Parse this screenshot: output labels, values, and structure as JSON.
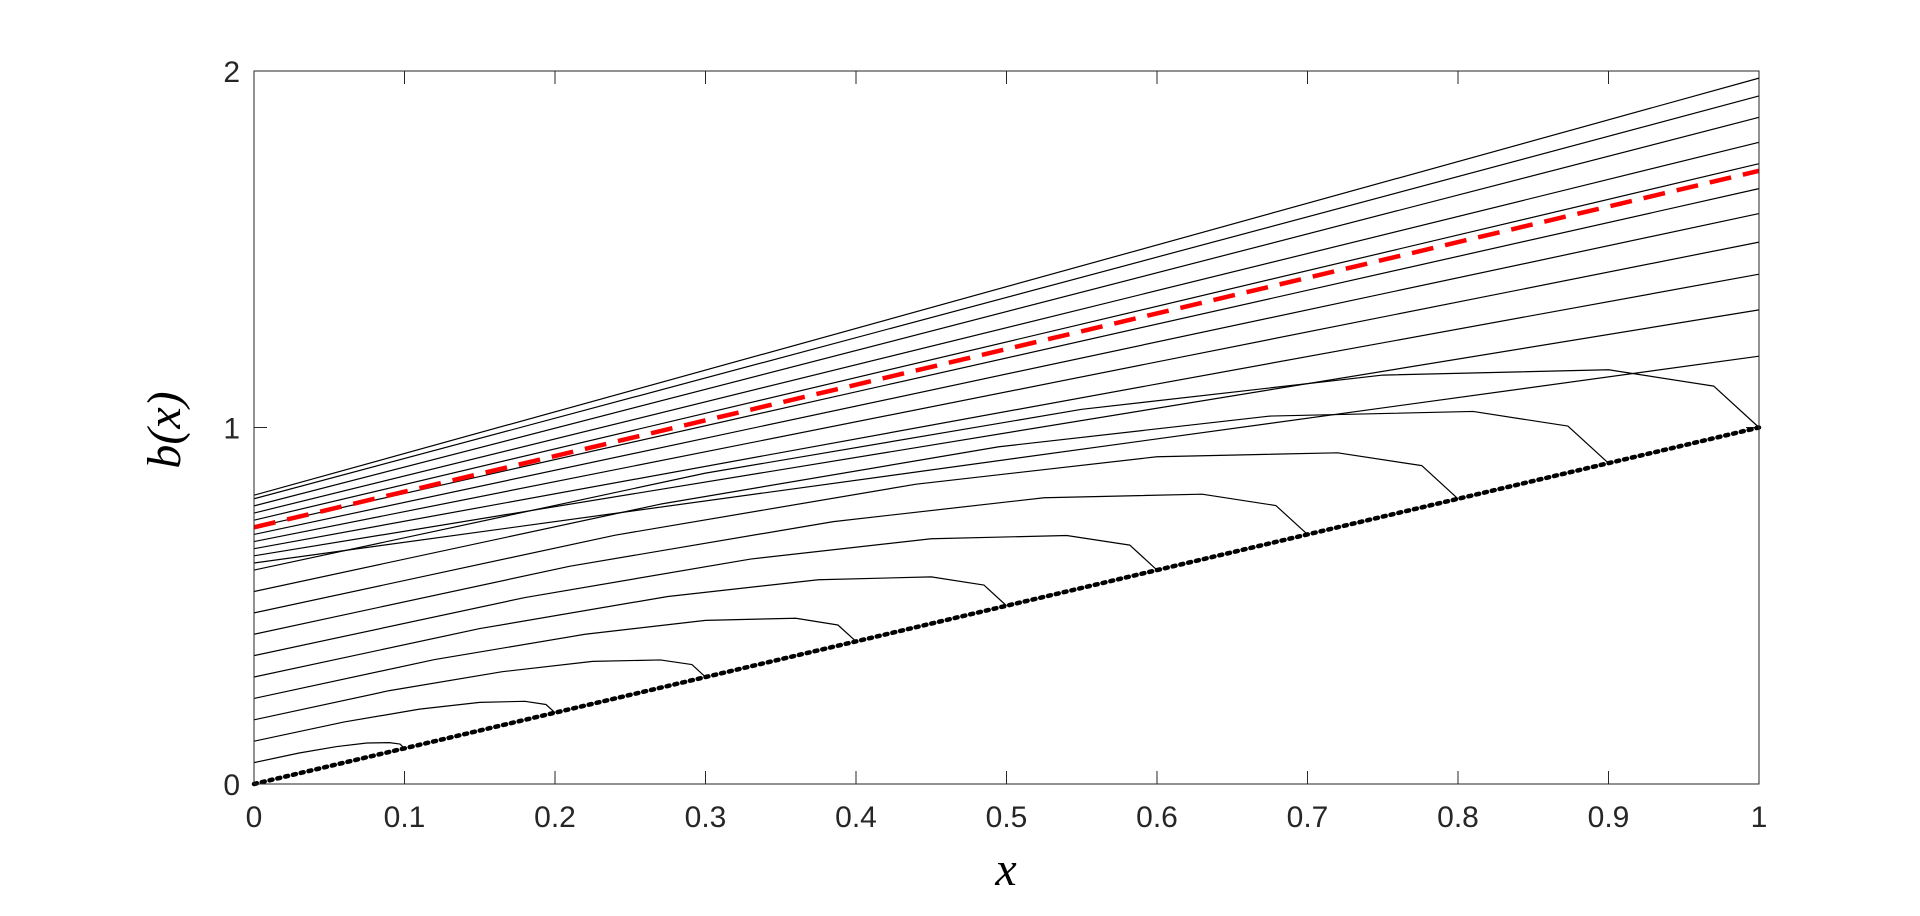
{
  "chart_data": {
    "type": "line",
    "xlabel": "x",
    "ylabel": "b(x)",
    "xlim": [
      0,
      1
    ],
    "ylim": [
      0,
      2
    ],
    "xticks": [
      0,
      0.1,
      0.2,
      0.3,
      0.4,
      0.5,
      0.6,
      0.7,
      0.8,
      0.9,
      1
    ],
    "yticks": [
      0,
      1,
      2
    ],
    "grid": false,
    "series": [
      {
        "color": "#000000",
        "style": "solid",
        "x": [
          0,
          0.03,
          0.055,
          0.075,
          0.09,
          0.097,
          0.1
        ],
        "values": [
          0.06,
          0.087,
          0.105,
          0.115,
          0.116,
          0.112,
          0.1
        ]
      },
      {
        "color": "#000000",
        "style": "solid",
        "x": [
          0,
          0.06,
          0.11,
          0.15,
          0.18,
          0.194,
          0.2
        ],
        "values": [
          0.12,
          0.174,
          0.21,
          0.229,
          0.232,
          0.223,
          0.2
        ]
      },
      {
        "color": "#000000",
        "style": "solid",
        "x": [
          0,
          0.09,
          0.165,
          0.225,
          0.27,
          0.291,
          0.3
        ],
        "values": [
          0.18,
          0.262,
          0.315,
          0.344,
          0.348,
          0.335,
          0.3
        ]
      },
      {
        "color": "#000000",
        "style": "solid",
        "x": [
          0,
          0.12,
          0.22,
          0.3,
          0.36,
          0.388,
          0.4
        ],
        "values": [
          0.24,
          0.349,
          0.42,
          0.459,
          0.465,
          0.446,
          0.4
        ]
      },
      {
        "color": "#000000",
        "style": "solid",
        "x": [
          0,
          0.15,
          0.275,
          0.375,
          0.45,
          0.485,
          0.5
        ],
        "values": [
          0.3,
          0.436,
          0.526,
          0.573,
          0.581,
          0.558,
          0.5
        ]
      },
      {
        "color": "#000000",
        "style": "solid",
        "x": [
          0,
          0.18,
          0.33,
          0.45,
          0.54,
          0.582,
          0.6
        ],
        "values": [
          0.36,
          0.523,
          0.631,
          0.688,
          0.697,
          0.67,
          0.6
        ]
      },
      {
        "color": "#000000",
        "style": "solid",
        "x": [
          0,
          0.21,
          0.385,
          0.525,
          0.63,
          0.679,
          0.7
        ],
        "values": [
          0.42,
          0.611,
          0.736,
          0.803,
          0.813,
          0.781,
          0.7
        ]
      },
      {
        "color": "#000000",
        "style": "solid",
        "x": [
          0,
          0.24,
          0.44,
          0.6,
          0.72,
          0.776,
          0.8
        ],
        "values": [
          0.48,
          0.698,
          0.841,
          0.918,
          0.929,
          0.893,
          0.8
        ]
      },
      {
        "color": "#000000",
        "style": "solid",
        "x": [
          0,
          0.27,
          0.495,
          0.675,
          0.81,
          0.873,
          0.9
        ],
        "values": [
          0.54,
          0.785,
          0.946,
          1.032,
          1.045,
          1.004,
          0.9
        ]
      },
      {
        "color": "#000000",
        "style": "solid",
        "x": [
          0,
          0.3,
          0.55,
          0.75,
          0.9,
          0.97,
          1
        ],
        "values": [
          0.6,
          0.872,
          1.051,
          1.147,
          1.162,
          1.116,
          1
        ]
      },
      {
        "color": "#000000",
        "style": "solid",
        "x": [
          0,
          1
        ],
        "values": [
          0.62,
          1.2
        ]
      },
      {
        "color": "#000000",
        "style": "solid",
        "x": [
          0,
          1
        ],
        "values": [
          0.64,
          1.33
        ]
      },
      {
        "color": "#000000",
        "style": "solid",
        "x": [
          0,
          1
        ],
        "values": [
          0.66,
          1.43
        ]
      },
      {
        "color": "#000000",
        "style": "solid",
        "x": [
          0,
          1
        ],
        "values": [
          0.68,
          1.52
        ]
      },
      {
        "color": "#000000",
        "style": "solid",
        "x": [
          0,
          1
        ],
        "values": [
          0.7,
          1.6
        ]
      },
      {
        "color": "#000000",
        "style": "solid",
        "x": [
          0,
          1
        ],
        "values": [
          0.72,
          1.67
        ]
      },
      {
        "color": "#000000",
        "style": "solid",
        "x": [
          0,
          1
        ],
        "values": [
          0.74,
          1.74
        ]
      },
      {
        "color": "#000000",
        "style": "solid",
        "x": [
          0,
          1
        ],
        "values": [
          0.76,
          1.8
        ]
      },
      {
        "color": "#000000",
        "style": "solid",
        "x": [
          0,
          1
        ],
        "values": [
          0.78,
          1.87
        ]
      },
      {
        "color": "#000000",
        "style": "solid",
        "x": [
          0,
          1
        ],
        "values": [
          0.8,
          1.93
        ]
      },
      {
        "color": "#000000",
        "style": "solid",
        "x": [
          0,
          1
        ],
        "values": [
          0.81,
          1.98
        ]
      },
      {
        "color": "#ff0000",
        "style": "dashed",
        "x": [
          0,
          1
        ],
        "values": [
          0.72,
          1.72
        ]
      },
      {
        "color": "#000000",
        "style": "dotted",
        "x": [
          0,
          1
        ],
        "values": [
          0,
          1
        ]
      }
    ]
  }
}
